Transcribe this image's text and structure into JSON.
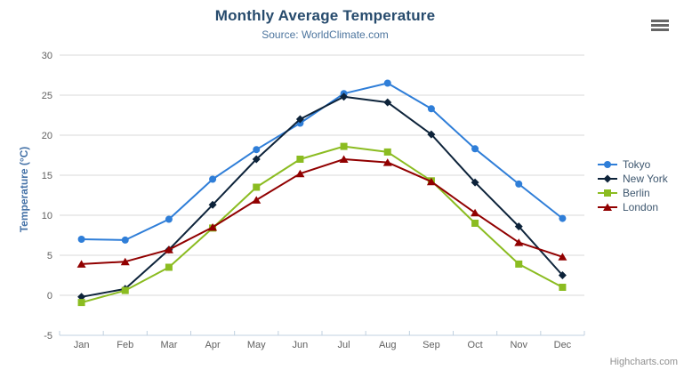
{
  "header": {
    "title": "Monthly Average Temperature",
    "subtitle": "Source: WorldClimate.com"
  },
  "credits": {
    "label": "Highcharts.com"
  },
  "context_menu": {
    "icon": "hamburger-icon"
  },
  "chart_data": {
    "type": "line",
    "title": "Monthly Average Temperature",
    "subtitle": "Source: WorldClimate.com",
    "categories": [
      "Jan",
      "Feb",
      "Mar",
      "Apr",
      "May",
      "Jun",
      "Jul",
      "Aug",
      "Sep",
      "Oct",
      "Nov",
      "Dec"
    ],
    "series": [
      {
        "name": "Tokyo",
        "color": "#2f7ed8",
        "marker": "circle",
        "values": [
          7.0,
          6.9,
          9.5,
          14.5,
          18.2,
          21.5,
          25.2,
          26.5,
          23.3,
          18.3,
          13.9,
          9.6
        ]
      },
      {
        "name": "New York",
        "color": "#0d233a",
        "marker": "diamond",
        "values": [
          -0.2,
          0.8,
          5.7,
          11.3,
          17.0,
          22.0,
          24.8,
          24.1,
          20.1,
          14.1,
          8.6,
          2.5
        ]
      },
      {
        "name": "Berlin",
        "color": "#8bbc21",
        "marker": "square",
        "values": [
          -0.9,
          0.6,
          3.5,
          8.4,
          13.5,
          17.0,
          18.6,
          17.9,
          14.3,
          9.0,
          3.9,
          1.0
        ]
      },
      {
        "name": "London",
        "color": "#910000",
        "marker": "triangle",
        "values": [
          3.9,
          4.2,
          5.7,
          8.5,
          11.9,
          15.2,
          17.0,
          16.6,
          14.2,
          10.3,
          6.6,
          4.8
        ]
      }
    ],
    "xlabel": "",
    "ylabel": "Temperature (°C)",
    "ylim": [
      -5,
      30
    ],
    "yticks": [
      -5,
      0,
      5,
      10,
      15,
      20,
      25,
      30
    ],
    "grid": true,
    "legend_position": "right"
  },
  "styles": {
    "title_color": "#274b6d",
    "subtitle_color": "#4d759e",
    "axis_title_color": "#4572a7",
    "label_color": "#606060",
    "grid_color": "#d8d8d8",
    "axis_line_color": "#c0d0e0",
    "legend_text_color": "#3e576f",
    "credits_color": "#909090",
    "menu_icon_color": "#666666",
    "background": "#ffffff"
  }
}
